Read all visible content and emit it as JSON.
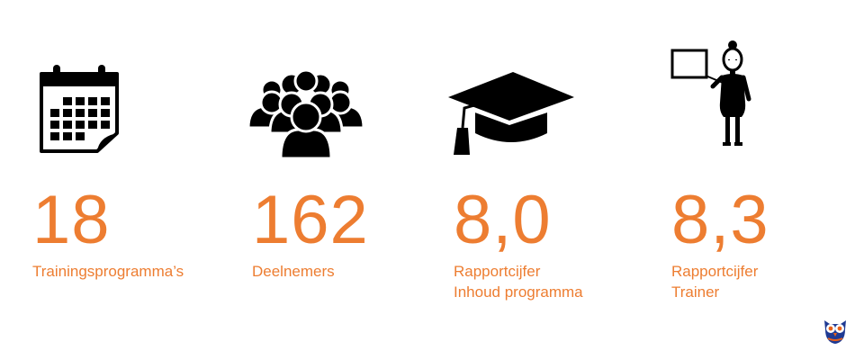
{
  "theme": {
    "accent": "#ED7D31",
    "icon_color": "#000000",
    "background": "#FFFFFF"
  },
  "stats": [
    {
      "icon": "calendar-icon",
      "value": "18",
      "label_lines": [
        "Trainingsprogramma’s"
      ]
    },
    {
      "icon": "people-group-icon",
      "value": "162",
      "label_lines": [
        "Deelnemers"
      ]
    },
    {
      "icon": "graduation-cap-icon",
      "value": "8,0",
      "label_lines": [
        "Rapportcijfer",
        "Inhoud programma"
      ]
    },
    {
      "icon": "teacher-board-icon",
      "value": "8,3",
      "label_lines": [
        "Rapportcijfer",
        "Trainer"
      ]
    }
  ],
  "logo": {
    "icon": "owl-logo-icon"
  }
}
